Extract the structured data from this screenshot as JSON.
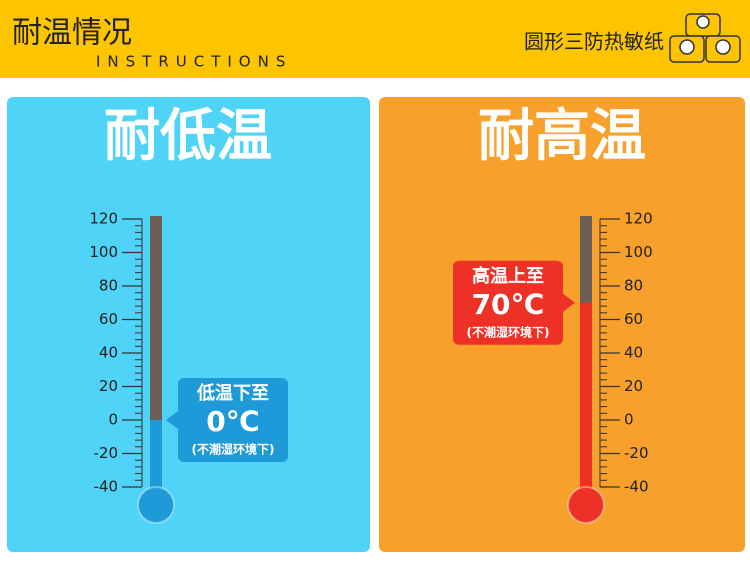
{
  "header": {
    "title": "耐温情况",
    "subtitle": "INSTRUCTIONS",
    "product": "圆形三防热敏纸"
  },
  "chart_data": [
    {
      "type": "thermometer",
      "title": "耐低温",
      "values": [
        0
      ],
      "value_labels": [
        "0℃"
      ],
      "callout_title": "低温下至",
      "callout_note": "(不潮湿环境下)",
      "color": "#1f9ad8",
      "tube_color": "#6b5f57",
      "ylim": [
        -40,
        120
      ],
      "yticks": [
        -40,
        -20,
        0,
        20,
        40,
        60,
        80,
        100,
        120
      ],
      "axis_side": "left"
    },
    {
      "type": "thermometer",
      "title": "耐高温",
      "values": [
        70
      ],
      "value_labels": [
        "70℃"
      ],
      "callout_title": "高温上至",
      "callout_note": "(不潮湿环境下)",
      "color": "#ee3127",
      "tube_color": "#6b5f57",
      "ylim": [
        -40,
        120
      ],
      "yticks": [
        -40,
        -20,
        0,
        20,
        40,
        60,
        80,
        100,
        120
      ],
      "axis_side": "right"
    }
  ]
}
